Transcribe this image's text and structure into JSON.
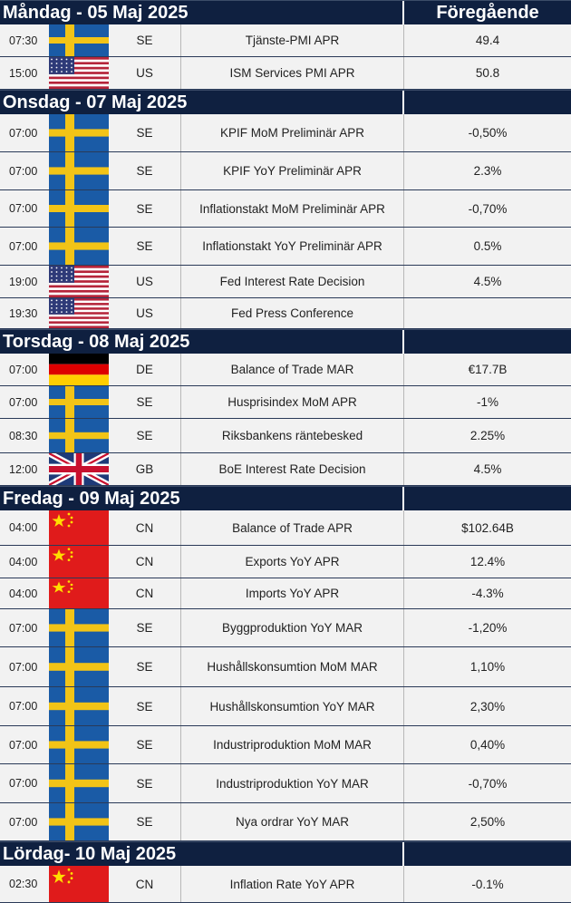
{
  "prev_header": "Föregående",
  "colors": {
    "header_bg": "#0f2040",
    "row_bg": "#f2f2f2"
  },
  "days": [
    {
      "title": "Måndag - 05 Maj 2025",
      "rows": [
        {
          "time": "07:30",
          "flag": "se-flag-icon",
          "cc": "SE",
          "event": "Tjänste-PMI APR",
          "prev": "49.4",
          "h": 35
        },
        {
          "time": "15:00",
          "flag": "us-flag-icon",
          "cc": "US",
          "event": "ISM Services PMI APR",
          "prev": "50.8",
          "h": 35
        }
      ]
    },
    {
      "title": "Onsdag - 07 Maj 2025",
      "rows": [
        {
          "time": "07:00",
          "flag": "se-flag-icon",
          "cc": "SE",
          "event": "KPIF MoM Preliminär APR",
          "prev": "-0,50%",
          "h": 41
        },
        {
          "time": "07:00",
          "flag": "se-flag-icon",
          "cc": "SE",
          "event": "KPIF YoY Preliminär APR",
          "prev": "2.3%",
          "h": 41
        },
        {
          "time": "07:00",
          "flag": "se-flag-icon",
          "cc": "SE",
          "event": "Inflationstakt MoM Preliminär APR",
          "prev": "-0,70%",
          "h": 40
        },
        {
          "time": "07:00",
          "flag": "se-flag-icon",
          "cc": "SE",
          "event": "Inflationstakt YoY Preliminär APR",
          "prev": "0.5%",
          "h": 41
        },
        {
          "time": "19:00",
          "flag": "us-flag-icon",
          "cc": "US",
          "event": "Fed Interest Rate Decision",
          "prev": "4.5%",
          "h": 35
        },
        {
          "time": "19:30",
          "flag": "us-flag-icon",
          "cc": "US",
          "event": "Fed Press Conference",
          "prev": "",
          "h": 33
        }
      ]
    },
    {
      "title": "Torsdag - 08 Maj 2025",
      "rows": [
        {
          "time": "07:00",
          "flag": "de-flag-icon",
          "cc": "DE",
          "event": "Balance of Trade MAR",
          "prev": "€17.7B",
          "h": 35
        },
        {
          "time": "07:00",
          "flag": "se-flag-icon",
          "cc": "SE",
          "event": "Husprisindex MoM APR",
          "prev": "-1%",
          "h": 35
        },
        {
          "time": "08:30",
          "flag": "se-flag-icon",
          "cc": "SE",
          "event": "Riksbankens räntebesked",
          "prev": "2.25%",
          "h": 37
        },
        {
          "time": "12:00",
          "flag": "gb-flag-icon",
          "cc": "GB",
          "event": "BoE Interest Rate Decision",
          "prev": "4.5%",
          "h": 35
        }
      ]
    },
    {
      "title": "Fredag - 09 Maj 2025",
      "rows": [
        {
          "time": "04:00",
          "flag": "cn-flag-icon",
          "cc": "CN",
          "event": "Balance of Trade APR",
          "prev": "$102.64B",
          "h": 38
        },
        {
          "time": "04:00",
          "flag": "cn-flag-icon",
          "cc": "CN",
          "event": "Exports YoY APR",
          "prev": "12.4%",
          "h": 35
        },
        {
          "time": "04:00",
          "flag": "cn-flag-icon",
          "cc": "CN",
          "event": "Imports YoY APR",
          "prev": "-4.3%",
          "h": 33
        },
        {
          "time": "07:00",
          "flag": "se-flag-icon",
          "cc": "SE",
          "event": "Byggproduktion YoY MAR",
          "prev": "-1,20%",
          "h": 41
        },
        {
          "time": "07:00",
          "flag": "se-flag-icon",
          "cc": "SE",
          "event": "Hushållskonsumtion MoM MAR",
          "prev": "1,10%",
          "h": 43
        },
        {
          "time": "07:00",
          "flag": "se-flag-icon",
          "cc": "SE",
          "event": "Hushållskonsumtion YoY MAR",
          "prev": "2,30%",
          "h": 42
        },
        {
          "time": "07:00",
          "flag": "se-flag-icon",
          "cc": "SE",
          "event": "Industriproduktion MoM MAR",
          "prev": "0,40%",
          "h": 41
        },
        {
          "time": "07:00",
          "flag": "se-flag-icon",
          "cc": "SE",
          "event": "Industriproduktion YoY MAR",
          "prev": "-0,70%",
          "h": 42
        },
        {
          "time": "07:00",
          "flag": "se-flag-icon",
          "cc": "SE",
          "event": "Nya ordrar YoY MAR",
          "prev": "2,50%",
          "h": 41
        }
      ]
    },
    {
      "title": "Lördag- 10 Maj 2025",
      "rows": [
        {
          "time": "02:30",
          "flag": "cn-flag-icon",
          "cc": "CN",
          "event": "Inflation Rate YoY APR",
          "prev": "-0.1%",
          "h": 40
        }
      ]
    }
  ]
}
